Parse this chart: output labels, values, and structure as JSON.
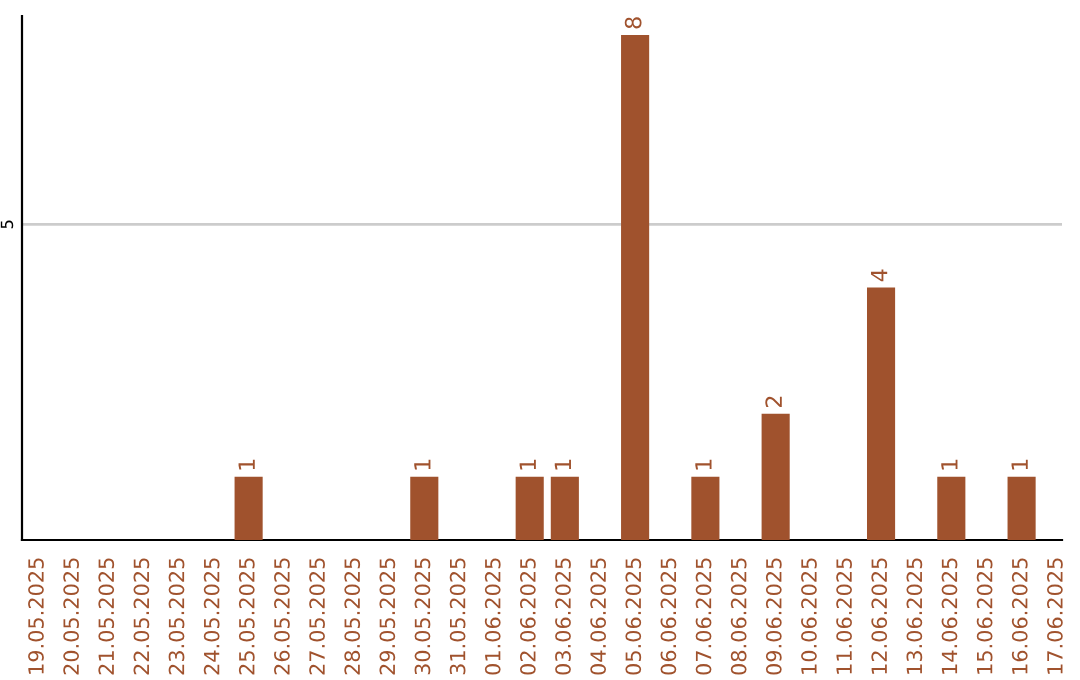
{
  "chart_data": {
    "type": "bar",
    "categories": [
      "19.05.2025",
      "20.05.2025",
      "21.05.2025",
      "22.05.2025",
      "23.05.2025",
      "24.05.2025",
      "25.05.2025",
      "26.05.2025",
      "27.05.2025",
      "28.05.2025",
      "29.05.2025",
      "30.05.2025",
      "31.05.2025",
      "01.06.2025",
      "02.06.2025",
      "03.06.2025",
      "04.06.2025",
      "05.06.2025",
      "06.06.2025",
      "07.06.2025",
      "08.06.2025",
      "09.06.2025",
      "10.06.2025",
      "11.06.2025",
      "12.06.2025",
      "13.06.2025",
      "14.06.2025",
      "15.06.2025",
      "16.06.2025",
      "17.06.2025"
    ],
    "values": [
      0,
      0,
      0,
      0,
      0,
      0,
      1,
      0,
      0,
      0,
      0,
      1,
      0,
      0,
      1,
      1,
      0,
      8,
      0,
      1,
      0,
      2,
      0,
      0,
      4,
      0,
      1,
      0,
      1,
      0
    ],
    "value_labels": [
      null,
      null,
      null,
      null,
      null,
      null,
      "1",
      null,
      null,
      null,
      null,
      "1",
      null,
      null,
      "1",
      "1",
      null,
      "8",
      null,
      "1",
      null,
      "2",
      null,
      null,
      "4",
      null,
      "1",
      null,
      "1",
      null
    ],
    "color": "#a0522d",
    "ylim": [
      0,
      8.3
    ],
    "yticks": [
      5
    ],
    "grid": "y",
    "legend": false
  }
}
